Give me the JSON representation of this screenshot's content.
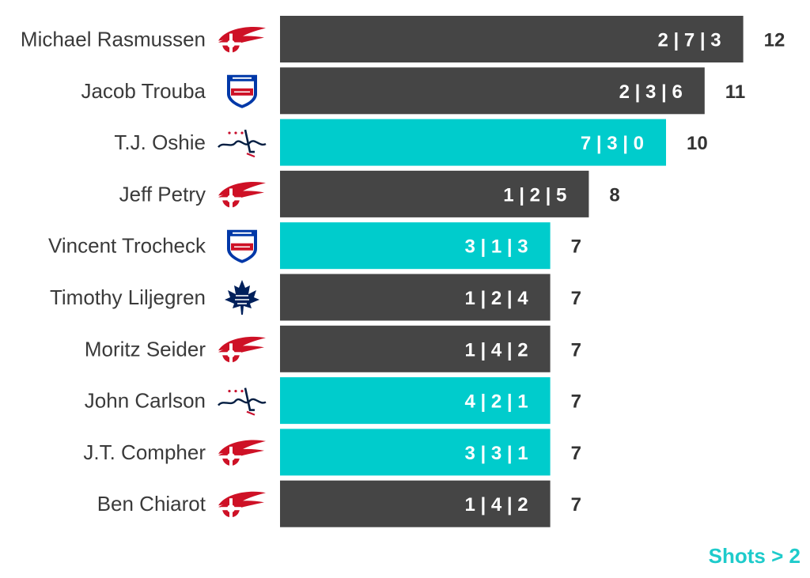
{
  "colors": {
    "default_bar": "#454545",
    "highlight_bar": "#00cccc",
    "highlight_text": "#1ecbcb",
    "red_wings": "#ce1126",
    "rangers_blue": "#0038a8",
    "leafs_blue": "#00205b",
    "capitals_blue": "#041e42",
    "capitals_red": "#c8102e"
  },
  "legend_note": "Shots > 2",
  "chart_data": {
    "type": "bar",
    "orientation": "horizontal",
    "title": "",
    "xlabel": "",
    "ylabel": "",
    "xlim": [
      0,
      12
    ],
    "highlight_rule": "Shots > 2",
    "players": [
      {
        "name": "Michael Rasmussen",
        "team": "Detroit Red Wings",
        "logo": "red-wings-logo",
        "breakdown": "2 | 7 | 3",
        "total": 12,
        "highlight": false
      },
      {
        "name": "Jacob Trouba",
        "team": "New York Rangers",
        "logo": "rangers-logo",
        "breakdown": "2 | 3 | 6",
        "total": 11,
        "highlight": false
      },
      {
        "name": "T.J. Oshie",
        "team": "Washington Capitals",
        "logo": "capitals-logo",
        "breakdown": "7 | 3 | 0",
        "total": 10,
        "highlight": true
      },
      {
        "name": "Jeff Petry",
        "team": "Detroit Red Wings",
        "logo": "red-wings-logo",
        "breakdown": "1 | 2 | 5",
        "total": 8,
        "highlight": false
      },
      {
        "name": "Vincent Trocheck",
        "team": "New York Rangers",
        "logo": "rangers-logo",
        "breakdown": "3 | 1 | 3",
        "total": 7,
        "highlight": true
      },
      {
        "name": "Timothy Liljegren",
        "team": "Toronto Maple Leafs",
        "logo": "maple-leafs-logo",
        "breakdown": "1 | 2 | 4",
        "total": 7,
        "highlight": false
      },
      {
        "name": "Moritz Seider",
        "team": "Detroit Red Wings",
        "logo": "red-wings-logo",
        "breakdown": "1 | 4 | 2",
        "total": 7,
        "highlight": false
      },
      {
        "name": "John Carlson",
        "team": "Washington Capitals",
        "logo": "capitals-logo",
        "breakdown": "4 | 2 | 1",
        "total": 7,
        "highlight": true
      },
      {
        "name": "J.T. Compher",
        "team": "Detroit Red Wings",
        "logo": "red-wings-logo",
        "breakdown": "3 | 3 | 1",
        "total": 7,
        "highlight": true
      },
      {
        "name": "Ben Chiarot",
        "team": "Detroit Red Wings",
        "logo": "red-wings-logo",
        "breakdown": "1 | 4 | 2",
        "total": 7,
        "highlight": false
      }
    ]
  }
}
